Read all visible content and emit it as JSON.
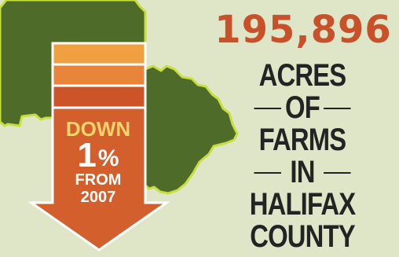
{
  "headline": {
    "number": "195,896",
    "lines": [
      "ACRES",
      "OF",
      "FARMS",
      "IN",
      "HALIFAX",
      "COUNTY"
    ]
  },
  "arrow": {
    "direction_word": "DOWN",
    "percent": "1",
    "percent_sign": "%",
    "from_label": "FROM",
    "year": "2007"
  },
  "colors": {
    "background": "#dfe6c8",
    "map_fill": "#4e6b2a",
    "map_outline": "#c5df3c",
    "number": "#c8512a",
    "text": "#232323",
    "arrow_light": "#f0a040",
    "arrow_mid": "#e9853a",
    "arrow_dark": "#cc5428",
    "arrow_shaft": "#d35f2d"
  }
}
